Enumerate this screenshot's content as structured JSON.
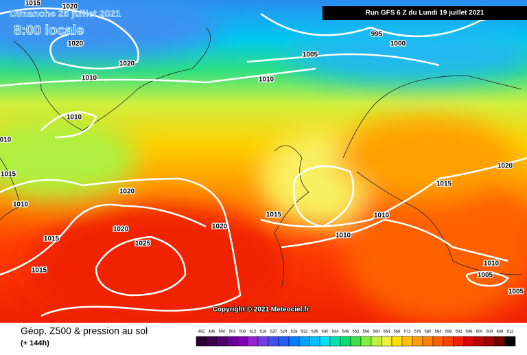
{
  "header": {
    "date": "Dimanche 25 juillet 2021",
    "time": "8:00 locale",
    "run": "Run GFS 6 Z du Lundi 19 juillet 2021"
  },
  "copyright": "Copyright © 2021 Meteociel.fr",
  "footer": {
    "title": "Géop. Z500 & pression au sol",
    "lead": "(+ 144h)"
  },
  "isobar_labels": [
    "1015",
    "1020",
    "1020",
    "1020",
    "1010",
    "1010",
    "010",
    "1015",
    "1010",
    "1020",
    "1020",
    "1015",
    "1025",
    "1015",
    "1020",
    "1010",
    "1005",
    "995",
    "1000",
    "1015",
    "1010",
    "1010",
    "1020",
    "1015",
    "1010",
    "1005",
    "1005"
  ],
  "legend": {
    "levels": [
      492,
      496,
      500,
      504,
      508,
      512,
      516,
      520,
      524,
      528,
      532,
      536,
      540,
      544,
      548,
      552,
      556,
      560,
      564,
      568,
      572,
      576,
      580,
      584,
      588,
      592,
      596,
      600,
      604,
      608,
      612
    ],
    "colors": [
      "#2a0030",
      "#3c0050",
      "#50006e",
      "#6a0090",
      "#8000b0",
      "#9a20d0",
      "#7040e0",
      "#4050f0",
      "#2060ff",
      "#0080ff",
      "#00a0ff",
      "#00c0ff",
      "#00e0f0",
      "#00e0b0",
      "#00e070",
      "#40e040",
      "#80f040",
      "#c0f040",
      "#f0f040",
      "#ffe000",
      "#ffc000",
      "#ffa000",
      "#ff8000",
      "#ff6000",
      "#ff4000",
      "#f02000",
      "#e00000",
      "#c00000",
      "#a00000",
      "#700000",
      "#000000"
    ]
  }
}
